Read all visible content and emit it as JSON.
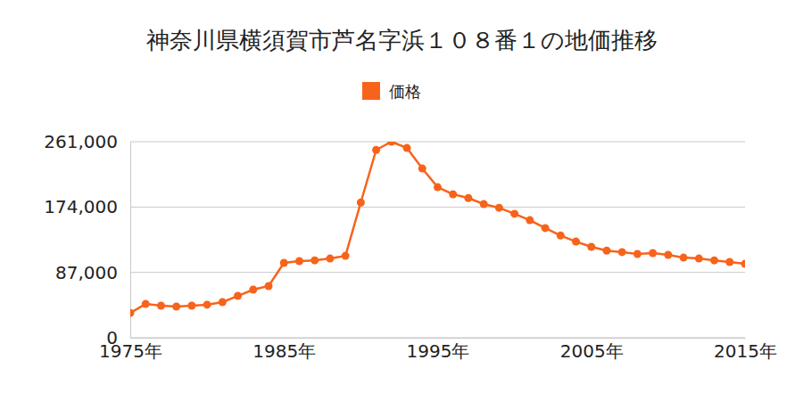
{
  "chart_data": {
    "type": "line",
    "title": "神奈川県横須賀市芦名字浜１０８番１の地価推移",
    "x": [
      1975,
      1976,
      1977,
      1978,
      1979,
      1980,
      1981,
      1982,
      1983,
      1984,
      1985,
      1986,
      1987,
      1988,
      1989,
      1990,
      1991,
      1992,
      1993,
      1994,
      1995,
      1996,
      1997,
      1998,
      1999,
      2000,
      2001,
      2002,
      2003,
      2004,
      2005,
      2006,
      2007,
      2008,
      2009,
      2010,
      2011,
      2012,
      2013,
      2014,
      2015
    ],
    "series": [
      {
        "name": "価格",
        "color": "#f7631b",
        "marker": "circle",
        "values": [
          33000,
          45000,
          42700,
          41500,
          42700,
          44000,
          47400,
          55700,
          64000,
          68800,
          99600,
          102000,
          103000,
          105500,
          109000,
          180000,
          250000,
          261000,
          252600,
          225300,
          200400,
          191000,
          186000,
          178000,
          173000,
          165000,
          156500,
          146000,
          136000,
          128000,
          121000,
          116000,
          114000,
          111500,
          112700,
          110300,
          106700,
          105500,
          103000,
          100800,
          98400
        ]
      }
    ],
    "xlim": [
      1975,
      2015
    ],
    "xticks": [
      {
        "value": 1975,
        "label": "1975年"
      },
      {
        "value": 1985,
        "label": "1985年"
      },
      {
        "value": 1995,
        "label": "1995年"
      },
      {
        "value": 2005,
        "label": "2005年"
      },
      {
        "value": 2015,
        "label": "2015年"
      }
    ],
    "ylim": [
      0,
      261000
    ],
    "yticks": [
      0,
      {
        "value": 87000,
        "label": "87,000"
      },
      {
        "value": 174000,
        "label": "174,000"
      },
      {
        "value": 261000,
        "label": "261,000"
      }
    ],
    "grid": true,
    "legend": "top"
  }
}
